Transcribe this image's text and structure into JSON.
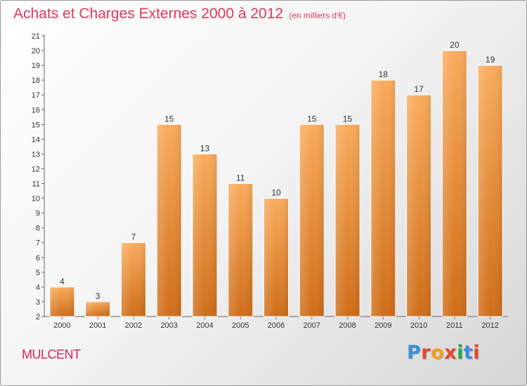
{
  "header": {
    "title": "Achats et Charges Externes 2000 à 2012",
    "subtitle": "(en milliers d'€)"
  },
  "footer": {
    "town": "MULCENT",
    "logo": "Proxiti",
    "logo_colors": [
      "#3a8fd8",
      "#e8452c",
      "#f39c1f",
      "#e8452c",
      "#2aa54a",
      "#3a8fd8",
      "#e8452c"
    ]
  },
  "colors": {
    "bar_light": "#f9ab5c",
    "bar_dark": "#cf6d18",
    "axis": "#666666",
    "title": "#e4365c"
  },
  "chart_data": {
    "type": "bar",
    "categories": [
      "2000",
      "2001",
      "2002",
      "2003",
      "2004",
      "2005",
      "2006",
      "2007",
      "2008",
      "2009",
      "2010",
      "2011",
      "2012"
    ],
    "values": [
      4,
      3,
      7,
      15,
      13,
      11,
      10,
      15,
      15,
      18,
      17,
      20,
      19
    ],
    "data_labels": [
      "4",
      "3",
      "7",
      "15",
      "13",
      "11",
      "10",
      "15",
      "15",
      "18",
      "17",
      "20",
      "19"
    ],
    "yticks": [
      "2",
      "3",
      "4",
      "5",
      "6",
      "7",
      "8",
      "9",
      "10",
      "11",
      "12",
      "13",
      "14",
      "15",
      "16",
      "17",
      "18",
      "19",
      "20",
      "21"
    ],
    "ylim": [
      2,
      21
    ],
    "grid": false,
    "legend": "none"
  }
}
